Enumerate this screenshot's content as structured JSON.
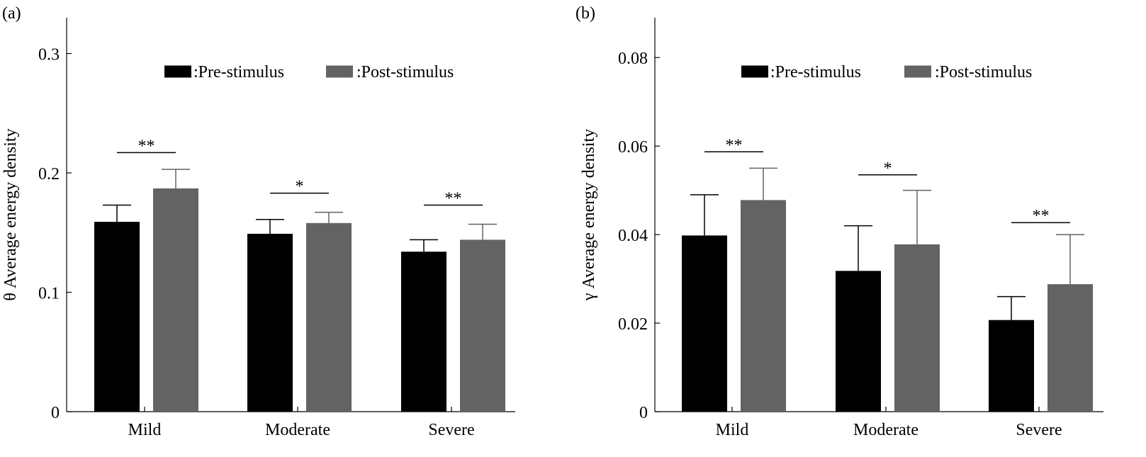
{
  "chart_data": [
    {
      "type": "bar",
      "panel_label": "(a)",
      "title": "",
      "xlabel": "",
      "ylabel": "θ Average energy density",
      "categories": [
        "Mild",
        "Moderate",
        "Severe"
      ],
      "ylim": [
        0,
        0.33
      ],
      "yticks": [
        0,
        0.1,
        0.2,
        0.3
      ],
      "ytick_labels": [
        "0",
        "0.1",
        "0.2",
        "0.3"
      ],
      "grid": false,
      "legend_position": "top-right",
      "series": [
        {
          "name": ":Pre-stimulus",
          "color": "#000000",
          "values": [
            0.159,
            0.149,
            0.134
          ],
          "errors": [
            0.014,
            0.012,
            0.01
          ]
        },
        {
          "name": ":Post-stimulus",
          "color": "#636363",
          "values": [
            0.187,
            0.158,
            0.144
          ],
          "errors": [
            0.016,
            0.009,
            0.013
          ]
        }
      ],
      "annotations": [
        {
          "category": "Mild",
          "text": "**",
          "y": 0.217
        },
        {
          "category": "Moderate",
          "text": "*",
          "y": 0.183
        },
        {
          "category": "Severe",
          "text": "**",
          "y": 0.173
        }
      ]
    },
    {
      "type": "bar",
      "panel_label": "(b)",
      "title": "",
      "xlabel": "",
      "ylabel": "γ Average energy density",
      "categories": [
        "Mild",
        "Moderate",
        "Severe"
      ],
      "ylim": [
        0,
        0.089
      ],
      "yticks": [
        0,
        0.02,
        0.04,
        0.06,
        0.08
      ],
      "ytick_labels": [
        "0",
        "0.02",
        "0.04",
        "0.06",
        "0.08"
      ],
      "grid": false,
      "legend_position": "top-right",
      "series": [
        {
          "name": ":Pre-stimulus",
          "color": "#000000",
          "values": [
            0.0398,
            0.0318,
            0.0207
          ],
          "errors": [
            0.0092,
            0.0102,
            0.0053
          ]
        },
        {
          "name": ":Post-stimulus",
          "color": "#636363",
          "values": [
            0.0478,
            0.0378,
            0.0288
          ],
          "errors": [
            0.0072,
            0.0122,
            0.0112
          ]
        }
      ],
      "annotations": [
        {
          "category": "Mild",
          "text": "**",
          "y": 0.0587
        },
        {
          "category": "Moderate",
          "text": "*",
          "y": 0.0535
        },
        {
          "category": "Severe",
          "text": "**",
          "y": 0.0427
        }
      ]
    }
  ]
}
